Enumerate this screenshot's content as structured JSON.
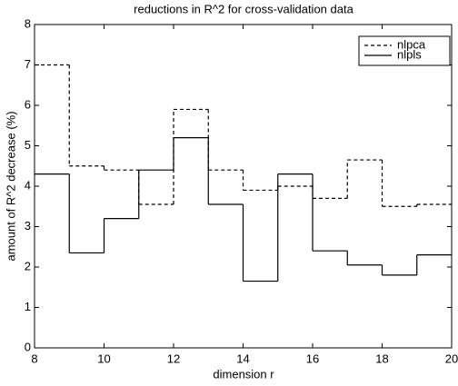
{
  "chart_data": {
    "type": "step",
    "title": "reductions in R^2 for cross-validation data",
    "x_label": "dimension r",
    "y_label": "amount of R^2 decrease (%)",
    "x": [
      8,
      9,
      10,
      11,
      12,
      13,
      14,
      15,
      16,
      17,
      18,
      19
    ],
    "series": [
      {
        "name": "nlpca",
        "color": "#000000",
        "linestyle": "dashed",
        "values": [
          7.0,
          4.5,
          4.4,
          3.55,
          5.9,
          4.4,
          3.9,
          4.0,
          3.7,
          4.65,
          3.5,
          3.55
        ]
      },
      {
        "name": "nlpls",
        "color": "#000000",
        "linestyle": "solid",
        "values": [
          4.3,
          2.35,
          3.2,
          4.4,
          5.2,
          3.55,
          1.65,
          4.3,
          2.4,
          2.05,
          1.8,
          2.3
        ]
      }
    ],
    "xlim": [
      8,
      20
    ],
    "xticks": [
      8,
      10,
      12,
      14,
      16,
      18,
      20
    ],
    "ylim": [
      0,
      8
    ],
    "yticks": [
      0,
      1,
      2,
      3,
      4,
      5,
      6,
      7,
      8
    ],
    "grid": false,
    "legend": "upper right"
  }
}
